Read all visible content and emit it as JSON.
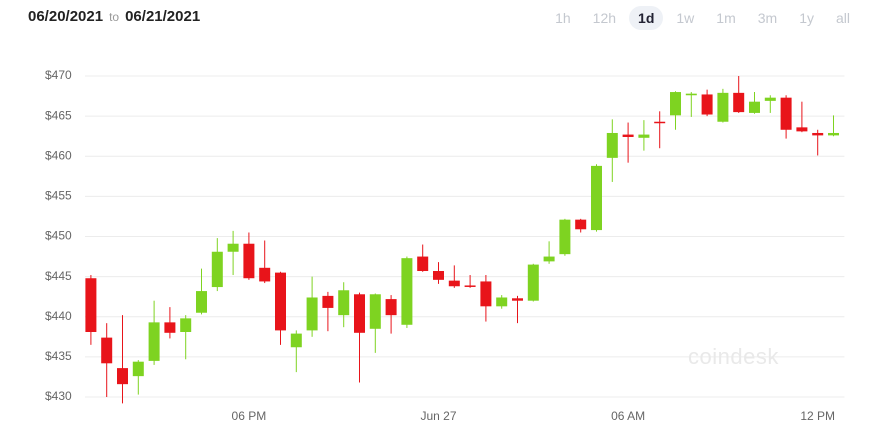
{
  "header": {
    "start_date": "06/20/2021",
    "to": "to",
    "end_date": "06/21/2021",
    "ranges": [
      "1h",
      "12h",
      "1d",
      "1w",
      "1m",
      "3m",
      "1y",
      "all"
    ],
    "active_range": 2
  },
  "watermark": "coindesk",
  "chart_data": {
    "type": "candlestick",
    "categories": [
      null,
      null,
      null,
      null,
      null,
      null,
      null,
      null,
      null,
      null,
      "06 PM",
      null,
      null,
      null,
      null,
      null,
      null,
      null,
      null,
      null,
      null,
      null,
      "Jun 27",
      null,
      null,
      null,
      null,
      null,
      null,
      null,
      null,
      null,
      null,
      null,
      "06 AM",
      null,
      null,
      null,
      null,
      null,
      null,
      null,
      null,
      null,
      null,
      null,
      "12 PM",
      null
    ],
    "open": [
      444.8,
      437.4,
      433.6,
      432.6,
      434.5,
      439.3,
      438.1,
      440.5,
      443.7,
      448.1,
      449.1,
      446.1,
      445.5,
      436.2,
      438.3,
      442.6,
      440.2,
      442.8,
      438.5,
      442.2,
      439.0,
      447.5,
      445.7,
      444.5,
      443.9,
      444.4,
      441.3,
      442.3,
      442.0,
      446.9,
      447.8,
      452.1,
      450.8,
      459.8,
      462.7,
      462.3,
      464.3,
      465.1,
      467.6,
      467.7,
      464.3,
      467.9,
      465.4,
      466.9,
      467.3,
      463.6,
      462.9,
      462.6
    ],
    "high": [
      445.2,
      439.2,
      440.2,
      434.6,
      442.0,
      441.2,
      440.2,
      446.0,
      449.8,
      450.7,
      450.5,
      449.5,
      445.6,
      438.3,
      445.0,
      443.1,
      444.3,
      443.0,
      442.9,
      442.7,
      447.5,
      449.0,
      446.8,
      446.4,
      445.2,
      445.2,
      442.7,
      442.6,
      446.6,
      449.4,
      452.2,
      452.2,
      459.0,
      464.6,
      464.2,
      464.5,
      465.6,
      468.1,
      468.0,
      468.3,
      468.4,
      470.0,
      468.0,
      467.6,
      467.6,
      466.8,
      463.3,
      465.1
    ],
    "low": [
      436.5,
      430.0,
      429.2,
      430.3,
      434.0,
      437.3,
      434.7,
      440.3,
      443.2,
      445.2,
      444.6,
      444.2,
      436.5,
      433.1,
      437.5,
      438.2,
      438.7,
      431.8,
      435.5,
      437.9,
      438.6,
      445.6,
      444.1,
      443.6,
      443.6,
      439.4,
      441.0,
      439.2,
      441.9,
      446.6,
      447.6,
      450.5,
      450.6,
      456.8,
      459.2,
      460.7,
      461.0,
      463.3,
      464.9,
      465.0,
      464.2,
      465.4,
      465.3,
      465.4,
      462.2,
      463.0,
      460.1,
      462.5
    ],
    "close": [
      438.1,
      434.2,
      431.6,
      434.4,
      439.3,
      438.0,
      439.8,
      443.2,
      448.1,
      449.1,
      444.8,
      444.4,
      438.3,
      437.9,
      442.4,
      441.1,
      443.3,
      438.0,
      442.8,
      440.2,
      447.3,
      445.7,
      444.6,
      443.8,
      443.8,
      441.3,
      442.4,
      442.0,
      446.5,
      447.5,
      452.1,
      450.9,
      458.8,
      462.9,
      462.4,
      462.7,
      464.2,
      468.0,
      467.8,
      465.2,
      467.9,
      465.5,
      466.8,
      467.3,
      463.3,
      463.1,
      462.6,
      462.9
    ],
    "up_color": "#7ed321",
    "down_color": "#e8141a",
    "ylim": [
      429,
      471.5
    ],
    "yticks": [
      {
        "value": 430,
        "label": "$430"
      },
      {
        "value": 435,
        "label": "$435"
      },
      {
        "value": 440,
        "label": "$440"
      },
      {
        "value": 445,
        "label": "$445"
      },
      {
        "value": 450,
        "label": "$450"
      },
      {
        "value": 455,
        "label": "$455"
      },
      {
        "value": 460,
        "label": "$460"
      },
      {
        "value": 465,
        "label": "$465"
      },
      {
        "value": 470,
        "label": "$470"
      }
    ],
    "grid": true
  }
}
